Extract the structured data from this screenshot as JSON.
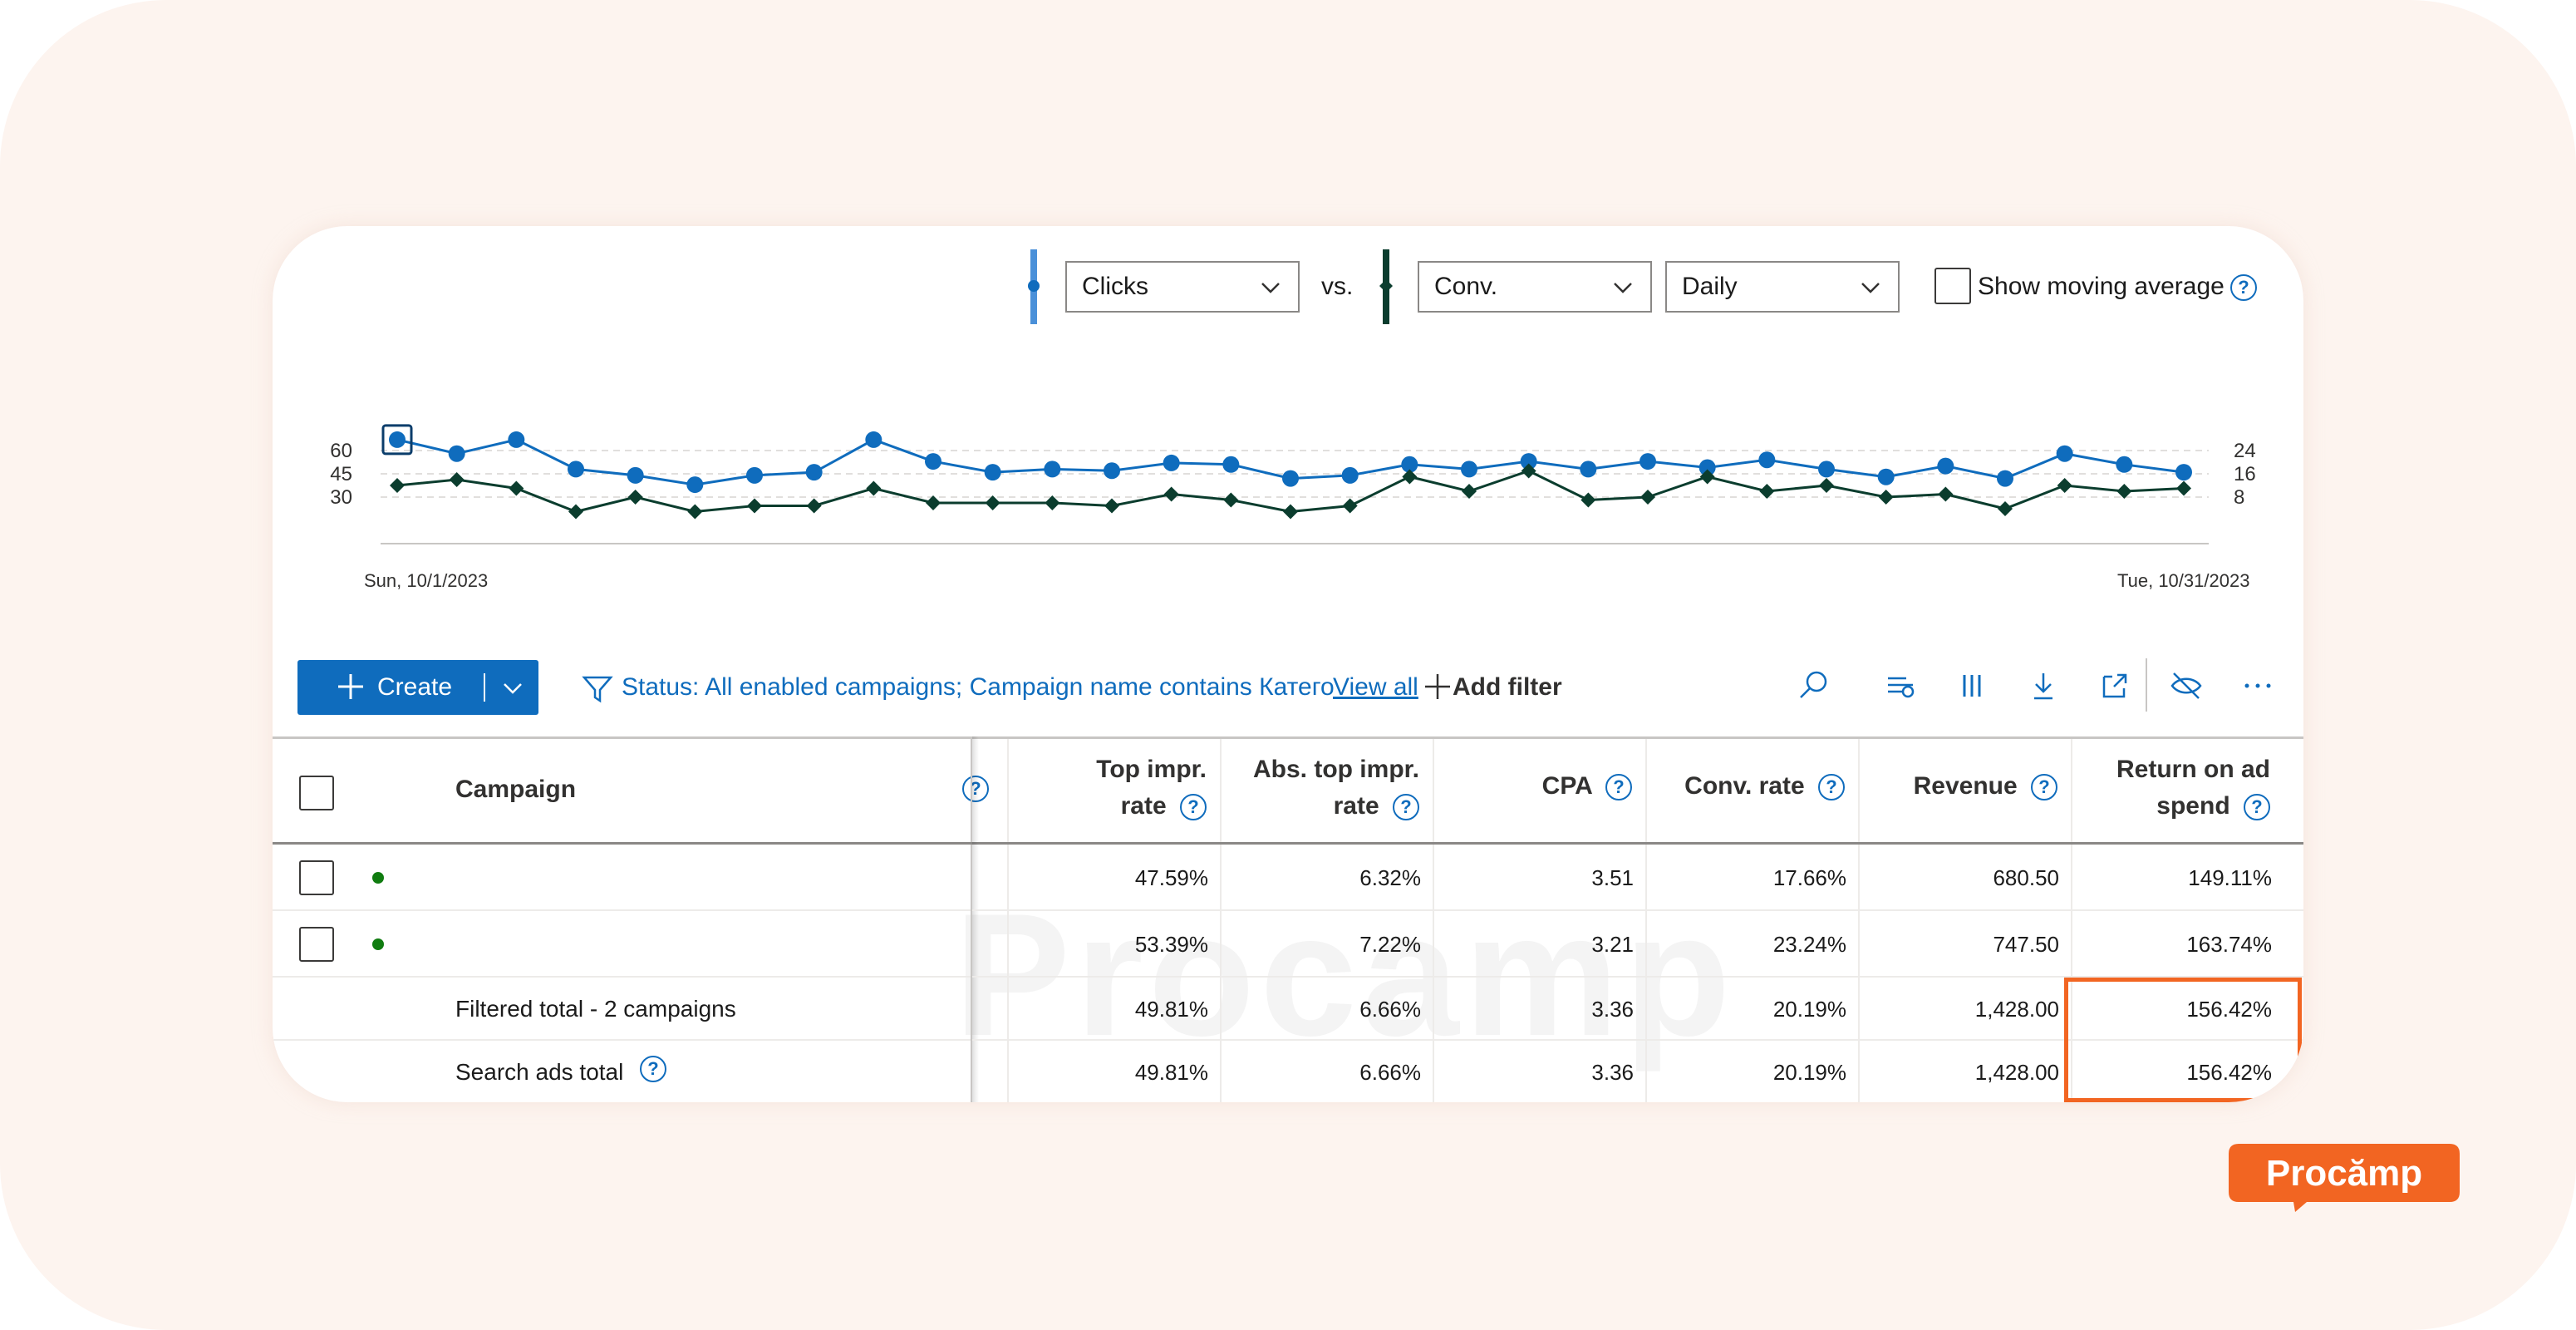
{
  "chart_controls": {
    "metric1": "Clicks",
    "vs": "vs.",
    "metric2": "Conv.",
    "granularity": "Daily",
    "moving_average_label": "Show moving average",
    "moving_average_checked": false
  },
  "colors": {
    "clicks": "#0f6cbd",
    "conversions": "#0b3d2e",
    "accent": "#0f6cbd",
    "highlight": "#f26522",
    "status_enabled": "#107c10",
    "brand": "#f26522"
  },
  "chart_data": {
    "type": "line",
    "x_start_label": "Sun, 10/1/2023",
    "x_end_label": "Tue, 10/31/2023",
    "left_axis_ticks": [
      "60",
      "45",
      "30"
    ],
    "right_axis_ticks": [
      "24",
      "16",
      "8"
    ],
    "left_axis_values": [
      60,
      45,
      30
    ],
    "right_axis_values": [
      24,
      16,
      8
    ],
    "grid": true,
    "series": [
      {
        "axis": "left",
        "marker": "circle",
        "values": [
          67,
          58,
          67,
          48,
          44,
          38,
          44,
          46,
          67,
          53,
          46,
          48,
          47,
          52,
          51,
          42,
          44,
          51,
          48,
          53,
          48,
          53,
          49,
          54,
          48,
          43,
          50,
          42,
          58,
          51,
          46
        ]
      },
      {
        "axis": "right",
        "marker": "diamond",
        "values": [
          12,
          14,
          11,
          3,
          8,
          3,
          5,
          5,
          11,
          6,
          6,
          6,
          5,
          9,
          7,
          3,
          5,
          15,
          10,
          17,
          7,
          8,
          15,
          10,
          12,
          8,
          9,
          4,
          12,
          10,
          11
        ]
      }
    ]
  },
  "toolbar": {
    "create_label": "Create",
    "filter_text": "Status: All enabled campaigns; Campaign name contains Катего",
    "view_all": "View all",
    "add_filter": "Add filter",
    "icons": [
      "search-icon",
      "columns-compare-icon",
      "columns-icon",
      "download-icon",
      "expand-icon",
      "hide-icon",
      "more-icon"
    ]
  },
  "table": {
    "headers": {
      "campaign": "Campaign",
      "top_impr_1": "Top impr.",
      "top_impr_2": "rate",
      "abs_top_1": "Abs. top impr.",
      "abs_top_2": "rate",
      "cpa": "CPA",
      "conv_rate": "Conv. rate",
      "revenue": "Revenue",
      "roas_1": "Return on ad",
      "roas_2": "spend"
    },
    "rows": [
      {
        "top_impr": "47.59%",
        "abs_top": "6.32%",
        "cpa": "3.51",
        "conv_rate": "17.66%",
        "revenue": "680.50",
        "roas": "149.11%"
      },
      {
        "top_impr": "53.39%",
        "abs_top": "7.22%",
        "cpa": "3.21",
        "conv_rate": "23.24%",
        "revenue": "747.50",
        "roas": "163.74%"
      }
    ],
    "totals": [
      {
        "label": "Filtered total - 2 campaigns",
        "top_impr": "49.81%",
        "abs_top": "6.66%",
        "cpa": "3.36",
        "conv_rate": "20.19%",
        "revenue": "1,428.00",
        "roas": "156.42%"
      },
      {
        "label": "Search ads total",
        "top_impr": "49.81%",
        "abs_top": "6.66%",
        "cpa": "3.36",
        "conv_rate": "20.19%",
        "revenue": "1,428.00",
        "roas": "156.42%"
      }
    ]
  },
  "watermark": "Procamp",
  "logo_text": "Procămp"
}
